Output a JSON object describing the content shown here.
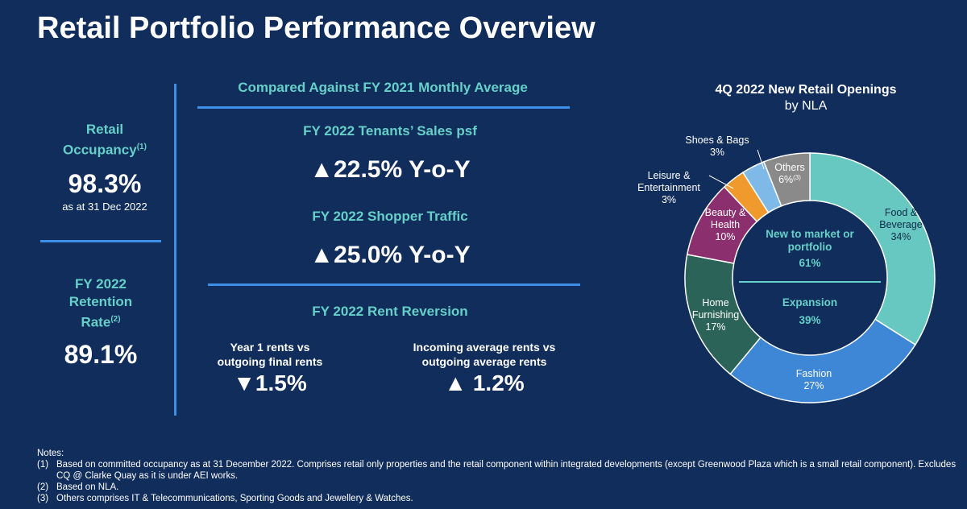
{
  "title": "Retail Portfolio Performance Overview",
  "left": {
    "occupancy_label": "Retail Occupancy",
    "occupancy_sup": "(1)",
    "occupancy_value": "98.3%",
    "occupancy_sub": "as at 31 Dec 2022",
    "retention_label": "FY 2022 Retention Rate",
    "retention_sup": "(2)",
    "retention_value": "89.1%"
  },
  "middle": {
    "header": "Compared Against FY 2021 Monthly Average",
    "sales_label": "FY 2022 Tenants’ Sales psf",
    "sales_value": "▲22.5% Y-o-Y",
    "traffic_label": "FY 2022 Shopper Traffic",
    "traffic_value": "▲25.0% Y-o-Y",
    "rent_label": "FY 2022 Rent Reversion",
    "year1_label": "Year 1 rents vs outgoing final rents",
    "year1_value": "▼1.5%",
    "incoming_label": "Incoming average rents vs outgoing average rents",
    "incoming_value": "▲ 1.2%"
  },
  "chart_data": {
    "type": "pie",
    "title": "4Q 2022 New Retail Openings",
    "subtitle": "by NLA",
    "donut": true,
    "slices": [
      {
        "label": "Food & Beverage",
        "value": 34,
        "color": "#66c8c0"
      },
      {
        "label": "Fashion",
        "value": 27,
        "color": "#3e86d6"
      },
      {
        "label": "Home Furnishing",
        "value": 17,
        "color": "#2b6358"
      },
      {
        "label": "Beauty & Health",
        "value": 10,
        "color": "#8c2f6e"
      },
      {
        "label": "Leisure & Entertainment",
        "value": 3,
        "color": "#f09a2e"
      },
      {
        "label": "Shoes & Bags",
        "value": 3,
        "color": "#7fb9e8"
      },
      {
        "label": "Others",
        "value": 6,
        "value_sup": "(3)",
        "color": "#8a8a8a"
      }
    ],
    "center": [
      {
        "label": "New to market or portfolio",
        "value": "61%"
      },
      {
        "label": "Expansion",
        "value": "39%"
      }
    ]
  },
  "notes": {
    "heading": "Notes:",
    "items": [
      {
        "num": "(1)",
        "text": "Based on committed occupancy as at 31 December 2022. Comprises retail only properties and the retail component within integrated developments (except Greenwood Plaza which is a small retail component). Excludes CQ @ Clarke Quay as it is under AEI works."
      },
      {
        "num": "(2)",
        "text": "Based on NLA."
      },
      {
        "num": "(3)",
        "text": "Others comprises IT & Telecommunications, Sporting Goods and Jewellery & Watches."
      }
    ]
  }
}
